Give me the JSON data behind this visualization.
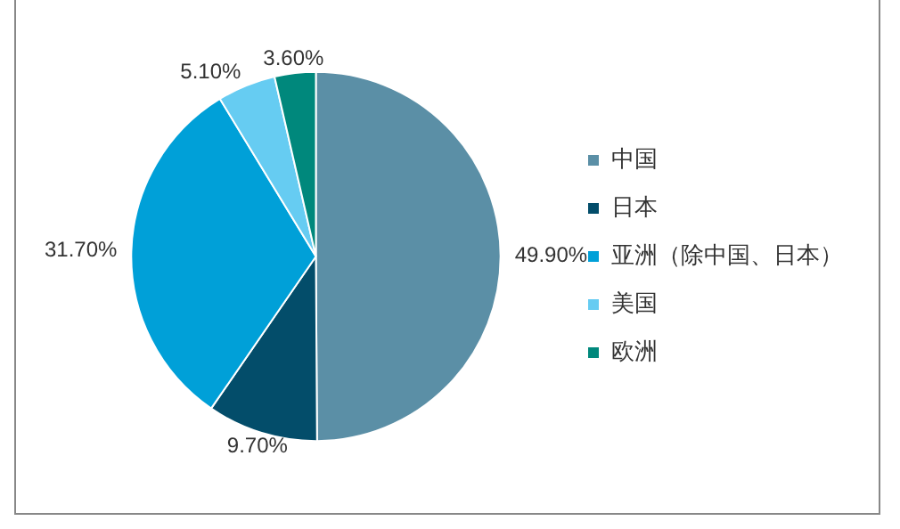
{
  "chart_data": {
    "type": "pie",
    "categories": [
      "中国",
      "日本",
      "亚洲（除中国、日本）",
      "美国",
      "欧洲"
    ],
    "values": [
      49.9,
      9.7,
      31.7,
      5.1,
      3.6
    ],
    "value_labels": [
      "49.90%",
      "9.70%",
      "31.70%",
      "5.10%",
      "3.60%"
    ],
    "colors": [
      "#5b8fa6",
      "#034d6a",
      "#00a0d8",
      "#66ccf2",
      "#00887c"
    ],
    "legend": "right"
  }
}
